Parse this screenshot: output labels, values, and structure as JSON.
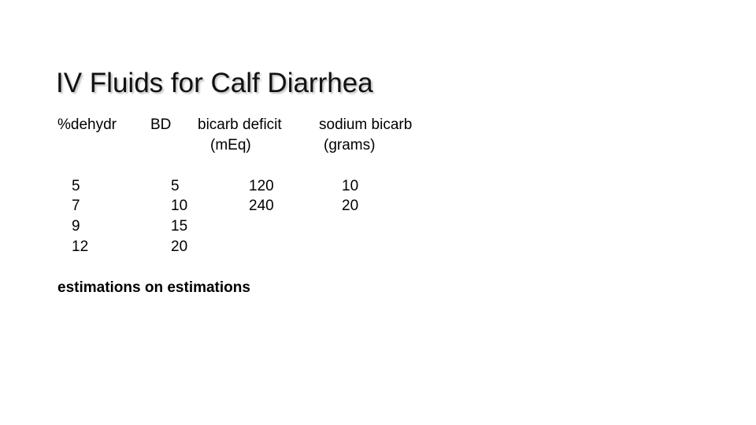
{
  "title": "IV Fluids for Calf Diarrhea",
  "table": {
    "headers": [
      {
        "line1": "%dehydr",
        "line2": ""
      },
      {
        "line1": "BD",
        "line2": ""
      },
      {
        "line1": "bicarb deficit",
        "line2": "(mEq)"
      },
      {
        "line1": "sodium bicarb",
        "line2": "(grams)"
      }
    ],
    "rows": [
      [
        "5",
        "5",
        "120",
        "10"
      ],
      [
        "7",
        "10",
        "240",
        "20"
      ],
      [
        "9",
        "15",
        "",
        ""
      ],
      [
        "12",
        "20",
        "",
        ""
      ]
    ]
  },
  "note": "estimations on estimations"
}
